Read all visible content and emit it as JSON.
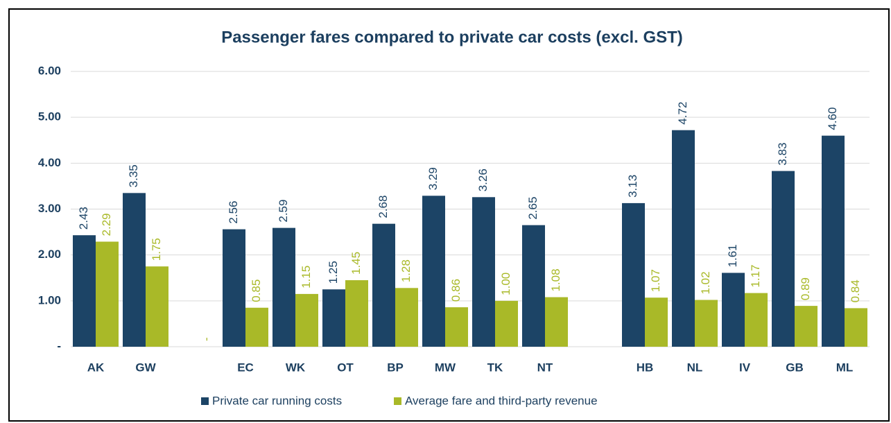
{
  "chart_data": {
    "type": "bar",
    "title": "Passenger fares compared to private car costs (excl. GST)",
    "categories": [
      "AK",
      "GW",
      null,
      "EC",
      "WK",
      "OT",
      "BP",
      "MW",
      "TK",
      "NT",
      null,
      "HB",
      "NL",
      "IV",
      "GB",
      "ML"
    ],
    "series": [
      {
        "name": "Private car running costs",
        "color": "#1c4466",
        "values": [
          2.43,
          3.35,
          null,
          2.56,
          2.59,
          1.25,
          2.68,
          3.29,
          3.26,
          2.65,
          null,
          3.13,
          4.72,
          1.61,
          3.83,
          4.6
        ],
        "value_labels": [
          "2.43",
          "3.35",
          null,
          "2.56",
          "2.59",
          "1.25",
          "2.68",
          "3.29",
          "3.26",
          "2.65",
          null,
          "3.13",
          "4.72",
          "1.61",
          "3.83",
          "4.60"
        ]
      },
      {
        "name": "Average fare and third-party revenue",
        "color": "#a9b928",
        "values": [
          2.29,
          1.75,
          0,
          0.85,
          1.15,
          1.45,
          1.28,
          0.86,
          1.0,
          1.08,
          null,
          1.07,
          1.02,
          1.17,
          0.89,
          0.84
        ],
        "value_labels": [
          "2.29",
          "1.75",
          "-",
          "0.85",
          "1.15",
          "1.45",
          "1.28",
          "0.86",
          "1.00",
          "1.08",
          null,
          "1.07",
          "1.02",
          "1.17",
          "0.89",
          "0.84"
        ]
      }
    ],
    "ylim": [
      0,
      6
    ],
    "yticks": [
      {
        "value": 0,
        "label": "-"
      },
      {
        "value": 1,
        "label": "1.00"
      },
      {
        "value": 2,
        "label": "2.00"
      },
      {
        "value": 3,
        "label": "3.00"
      },
      {
        "value": 4,
        "label": "4.00"
      },
      {
        "value": 5,
        "label": "5.00"
      },
      {
        "value": 6,
        "label": "6.00"
      }
    ],
    "grid": true,
    "legend": "bottom"
  }
}
